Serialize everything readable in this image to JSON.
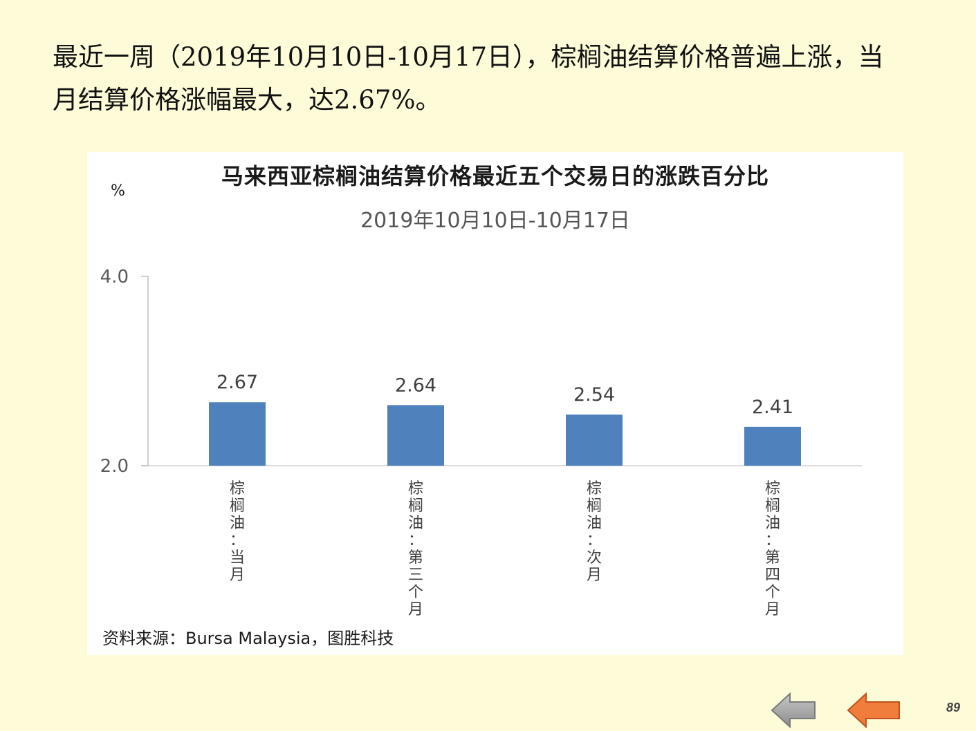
{
  "intro": {
    "line1": "最近一周（2019年10月10日-10月17日），棕榈油结算价格普遍上涨，当",
    "line2": "月结算价格涨幅最大，达2.67%。"
  },
  "chart_data": {
    "type": "bar",
    "title": "马来西亚棕榈油结算价格最近五个交易日的涨跌百分比",
    "subtitle": "2019年10月10日-10月17日",
    "ylabel": "%",
    "ylim": [
      2.0,
      4.0
    ],
    "yticks": [
      "2.0",
      "4.0"
    ],
    "categories": [
      "棕榈油：当月",
      "棕榈油：第三个月",
      "棕榈油：次月",
      "棕榈油：第四个月"
    ],
    "values": [
      2.67,
      2.64,
      2.54,
      2.41
    ],
    "data_labels": [
      "2.67",
      "2.64",
      "2.54",
      "2.41"
    ],
    "bar_color": "#4f81bd",
    "grid": false,
    "legend": "none"
  },
  "source": "资料来源：Bursa Malaysia，图胜科技",
  "nav": {
    "back_icon": "left-arrow-gray",
    "prev_icon": "left-arrow-orange",
    "page_number": "89"
  },
  "colors": {
    "background": "#fdfbd8",
    "panel": "#ffffff",
    "back_arrow": "#a6a6a6",
    "prev_arrow": "#f07d3c"
  }
}
